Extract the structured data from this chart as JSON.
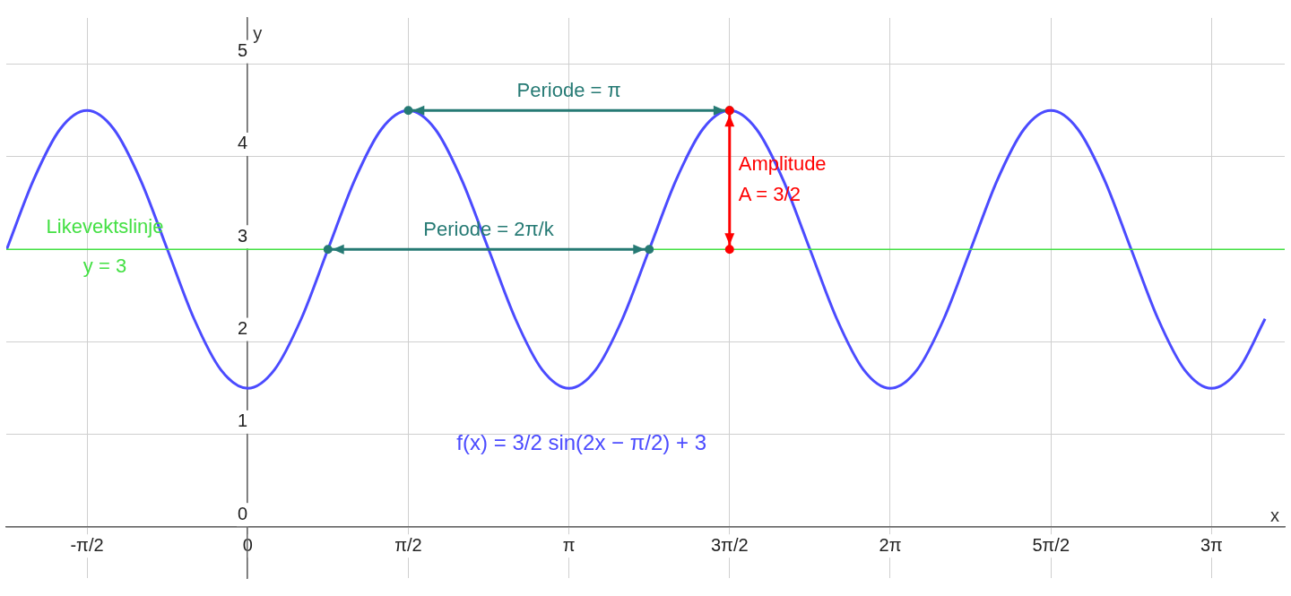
{
  "chart_data": {
    "type": "line",
    "xlabel": "x",
    "ylabel": "y",
    "xlim": [
      -2.36,
      10.14
    ],
    "ylim": [
      -0.55,
      5.5
    ],
    "xticks": [
      {
        "value": -1.571,
        "label": "-π/2"
      },
      0,
      {
        "value": 1.571,
        "label": "π/2"
      },
      {
        "value": 3.142,
        "label": "π"
      },
      {
        "value": 4.712,
        "label": "3π/2"
      },
      {
        "value": 6.283,
        "label": "2π"
      },
      {
        "value": 7.854,
        "label": "5π/2"
      },
      {
        "value": 9.425,
        "label": "3π"
      }
    ],
    "yticks": [
      0,
      1,
      2,
      3,
      4,
      5
    ],
    "grid": true,
    "legend": false,
    "series": [
      {
        "color": "#4b4bff",
        "x": [
          -2.356,
          -2.094,
          -1.833,
          -1.571,
          -1.309,
          -1.047,
          -0.785,
          -0.524,
          -0.262,
          0,
          0.262,
          0.524,
          0.785,
          1.047,
          1.309,
          1.571,
          1.833,
          2.094,
          2.356,
          2.618,
          2.88,
          3.142,
          3.403,
          3.665,
          3.927,
          4.189,
          4.451,
          4.712,
          4.974,
          5.236,
          5.498,
          5.76,
          6.021,
          6.283,
          6.545,
          6.807,
          7.069,
          7.33,
          7.592,
          7.854,
          8.116,
          8.378,
          8.639,
          8.901,
          9.163,
          9.425,
          9.687,
          9.948
        ],
        "values": [
          3,
          3.75,
          4.3,
          4.5,
          4.3,
          3.75,
          3,
          2.25,
          1.7,
          1.5,
          1.7,
          2.25,
          3,
          3.75,
          4.3,
          4.5,
          4.3,
          3.75,
          3,
          2.25,
          1.7,
          1.5,
          1.7,
          2.25,
          3,
          3.75,
          4.3,
          4.5,
          4.3,
          3.75,
          3,
          2.25,
          1.7,
          1.5,
          1.7,
          2.25,
          3,
          3.75,
          4.3,
          4.5,
          4.3,
          3.75,
          3,
          2.25,
          1.7,
          1.5,
          1.7,
          2.25
        ]
      },
      {
        "name": "Periode = π",
        "marker": "circle",
        "color": "#267a74",
        "x": [
          1.571,
          4.712
        ],
        "values": [
          4.5,
          4.5
        ]
      },
      {
        "name": "Periode = 2π/k",
        "marker": "circle",
        "color": "#267a74",
        "x": [
          0.785,
          3.927
        ],
        "values": [
          3,
          3
        ]
      },
      {
        "name": "Amplitude A = 3/2",
        "marker": "circle",
        "color": "#ff0000",
        "x": [
          4.712,
          4.712
        ],
        "values": [
          3,
          4.5
        ]
      }
    ],
    "ref_lines": [
      {
        "axis": "y",
        "value": 3,
        "label": "Likevektslinje y = 3",
        "color": "#44e044"
      }
    ],
    "annotations": [
      "f(x) = 3/2 sin(2x − π/2) + 3"
    ]
  }
}
